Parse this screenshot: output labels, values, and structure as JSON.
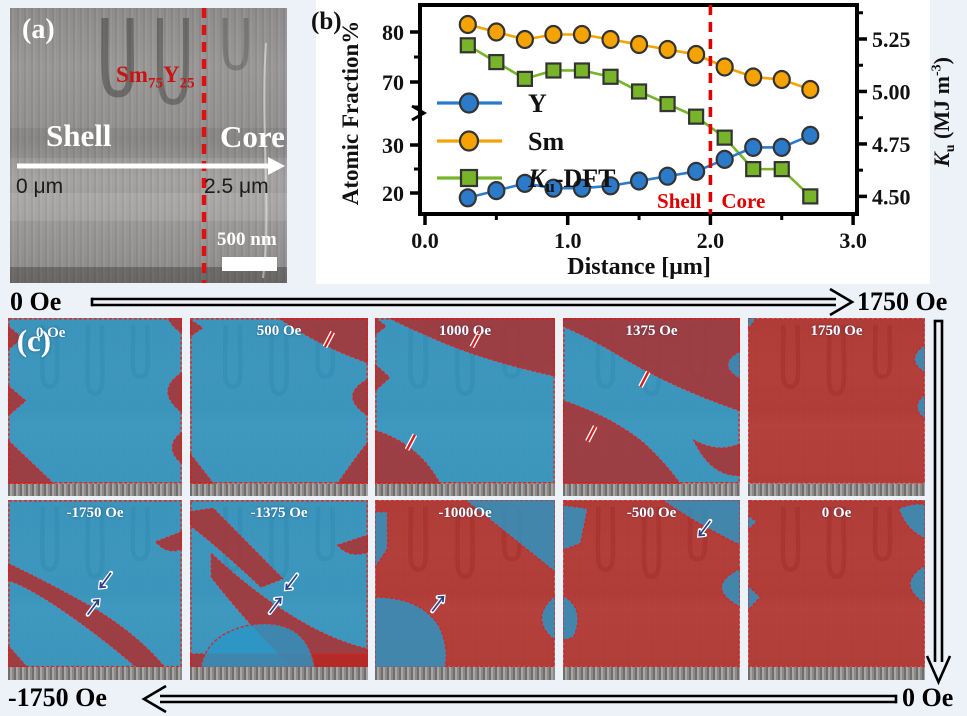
{
  "colors": {
    "background": "#edf1f8",
    "accent_red": "#dd1111",
    "domain_blue": "#2f9ac6",
    "domain_red": "#bc2a24",
    "series_blue": "#2b7bca",
    "series_orange": "#f5a300",
    "series_green": "#77b42a"
  },
  "panel_a": {
    "label": "(a)",
    "composition_parts": [
      "Sm",
      "75",
      "Y",
      "25"
    ],
    "shell_label": "Shell",
    "core_label": "Core",
    "arrow_start_label": "0 μm",
    "arrow_end_label": "2.5 μm",
    "scalebar_label": "500 nm"
  },
  "panel_b": {
    "label": "(b)",
    "left_axis_title": "Atomic Fraction%",
    "right_axis_title_parts": [
      "K",
      "u",
      " (MJ m",
      "-3",
      ")"
    ],
    "region_labels": {
      "left": "Shell",
      "right": "Core"
    }
  },
  "chart_data": {
    "type": "line",
    "title": "",
    "xlabel": "Distance [μm]",
    "ylabel_left": "Atomic Fraction%",
    "ylabel_right": "Ku (MJ m-3)",
    "x": [
      0.3,
      0.5,
      0.7,
      0.9,
      1.1,
      1.3,
      1.5,
      1.7,
      1.9,
      2.1,
      2.3,
      2.5,
      2.7
    ],
    "series": [
      {
        "name": "Y",
        "axis": "left",
        "marker": "circle",
        "color": "#2b7bca",
        "values": [
          19,
          20.5,
          22,
          21,
          21,
          21.5,
          22.5,
          23.5,
          24.5,
          27,
          29.5,
          29.5,
          32
        ]
      },
      {
        "name": "Sm",
        "axis": "left",
        "marker": "circle",
        "color": "#f5a300",
        "values": [
          81.5,
          80,
          78.5,
          79.5,
          79.5,
          78.5,
          77.5,
          76.5,
          75.5,
          73,
          71,
          70.5,
          68.5
        ]
      },
      {
        "name": "Ku-DFT",
        "name_parts": [
          "K",
          "u",
          "-DFT"
        ],
        "axis": "right",
        "marker": "square",
        "color": "#77b42a",
        "values": [
          5.22,
          5.14,
          5.06,
          5.1,
          5.1,
          5.07,
          5.0,
          4.94,
          4.88,
          4.78,
          4.63,
          4.63,
          4.5
        ]
      }
    ],
    "x_tick_labels": [
      "0.0",
      "1.0",
      "2.0",
      "3.0"
    ],
    "x_ticks": [
      0,
      1,
      2,
      3
    ],
    "x_minor_ticks": [
      0.5,
      1.5,
      2.5
    ],
    "left_ticks": [
      80,
      70,
      30,
      20
    ],
    "left_minor_ticks": [
      75,
      65,
      25
    ],
    "left_axis_break_between": [
      30,
      70
    ],
    "right_tick_labels": [
      "5.25",
      "5.00",
      "4.75",
      "4.50"
    ],
    "right_ticks": [
      5.25,
      5.0,
      4.75,
      4.5
    ],
    "right_minor_ticks": [
      5.375,
      5.125,
      4.875,
      4.625
    ],
    "xlim": [
      0.0,
      3.0
    ],
    "divider_x": 2.0,
    "grid": false,
    "legend_position": "middle-left"
  },
  "panel_c": {
    "label": "(c)",
    "top_arrow": {
      "left_label": "0 Oe",
      "right_label": "1750 Oe",
      "direction": "right"
    },
    "bottom_arrow": {
      "left_label": "-1750 Oe",
      "right_label": "0 Oe",
      "direction": "left"
    },
    "cells": [
      {
        "field": "0 Oe"
      },
      {
        "field": "500 Oe"
      },
      {
        "field": "1000 Oe"
      },
      {
        "field": "1375 Oe"
      },
      {
        "field": "1750 Oe"
      },
      {
        "field": "-1750 Oe"
      },
      {
        "field": "-1375 Oe"
      },
      {
        "field": "-1000Oe"
      },
      {
        "field": "-500 Oe"
      },
      {
        "field": "0 Oe"
      }
    ]
  }
}
